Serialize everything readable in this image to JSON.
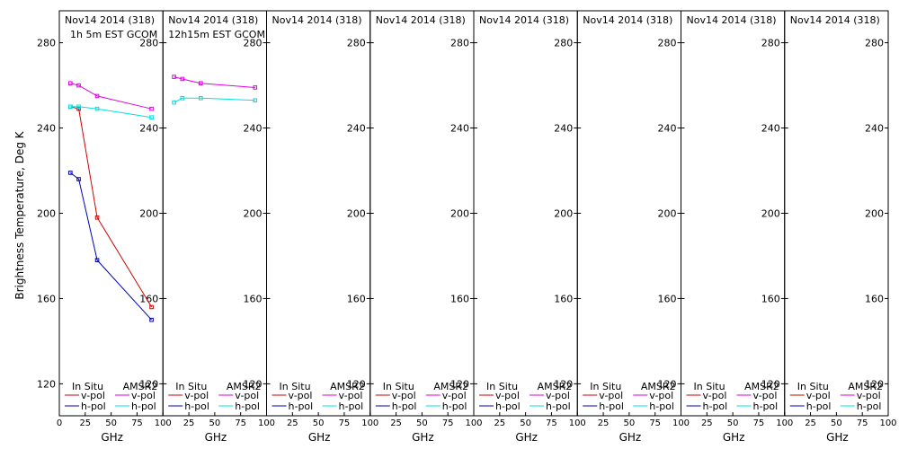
{
  "chart_data": {
    "type": "line",
    "ylabel": "Brightness Temperature, Deg K",
    "xlabel": "GHz",
    "xlim": [
      0,
      100
    ],
    "ylim": [
      105,
      295
    ],
    "xticks": [
      0,
      25,
      50,
      75,
      100
    ],
    "yticks": [
      120,
      160,
      200,
      240,
      280
    ],
    "legend": {
      "insitu_header": "In Situ",
      "amsr2_header": "AMSR2",
      "vpol": "v-pol",
      "hpol": "h-pol"
    },
    "colors": {
      "insitu_v": "#d00000",
      "insitu_h": "#0000b0",
      "amsr2_v": "#e000e0",
      "amsr2_h": "#00e0e0"
    },
    "panels": [
      {
        "title": "Nov14 2014 (318)",
        "subtitle": "1h 5m EST GCOM",
        "series": [
          {
            "name": "In Situ v-pol",
            "x": [
              10.7,
              18.7,
              36.5,
              89
            ],
            "y": [
              250,
              249,
              198,
              156
            ]
          },
          {
            "name": "In Situ h-pol",
            "x": [
              10.7,
              18.7,
              36.5,
              89
            ],
            "y": [
              219,
              216,
              178,
              150
            ]
          },
          {
            "name": "AMSR2 v-pol",
            "x": [
              10.7,
              18.7,
              36.5,
              89
            ],
            "y": [
              261,
              260,
              255,
              249
            ]
          },
          {
            "name": "AMSR2 h-pol",
            "x": [
              10.7,
              18.7,
              36.5,
              89
            ],
            "y": [
              250,
              250,
              249,
              245
            ]
          }
        ]
      },
      {
        "title": "Nov14 2014 (318)",
        "subtitle": "12h15m EST GCOM",
        "series": [
          {
            "name": "AMSR2 v-pol",
            "x": [
              10.7,
              18.7,
              36.5,
              89
            ],
            "y": [
              264,
              263,
              261,
              259
            ]
          },
          {
            "name": "AMSR2 h-pol",
            "x": [
              10.7,
              18.7,
              36.5,
              89
            ],
            "y": [
              252,
              254,
              254,
              253
            ]
          }
        ]
      },
      {
        "title": "Nov14 2014 (318)",
        "subtitle": "",
        "series": []
      },
      {
        "title": "Nov14 2014 (318)",
        "subtitle": "",
        "series": []
      },
      {
        "title": "Nov14 2014 (318)",
        "subtitle": "",
        "series": []
      },
      {
        "title": "Nov14 2014 (318)",
        "subtitle": "",
        "series": []
      },
      {
        "title": "Nov14 2014 (318)",
        "subtitle": "",
        "series": []
      },
      {
        "title": "Nov14 2014 (318)",
        "subtitle": "",
        "series": []
      }
    ]
  }
}
